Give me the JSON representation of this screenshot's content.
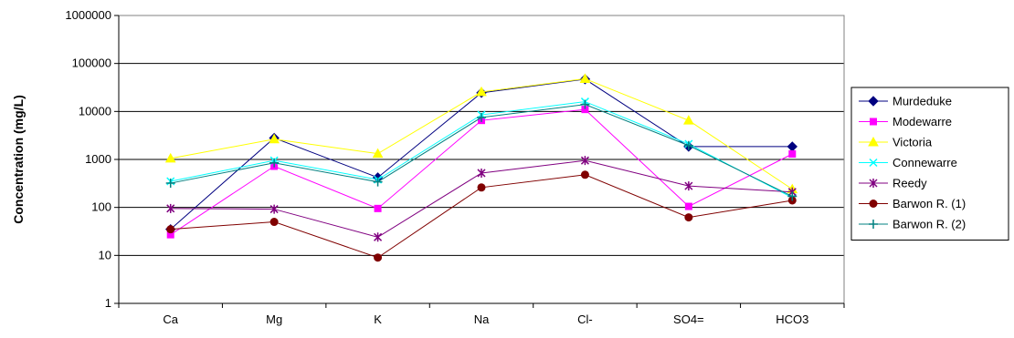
{
  "chart_data": {
    "type": "line",
    "ylabel": "Concentration (mg/L)",
    "xlabel": "",
    "yscale": "log",
    "ylim": [
      1,
      1000000
    ],
    "yticks": [
      "1",
      "10",
      "100",
      "1000",
      "10000",
      "100000",
      "1000000"
    ],
    "grid": "horizontal",
    "legend_position": "right",
    "categories": [
      "Ca",
      "Mg",
      "K",
      "Na",
      "Cl-",
      "SO4=",
      "HCO3"
    ],
    "series": [
      {
        "name": "Murdeduke",
        "color": "#000080",
        "marker": "diamond",
        "values": [
          35,
          2800,
          420,
          24500,
          47000,
          1850,
          1850
        ]
      },
      {
        "name": "Modewarre",
        "color": "#FF00FF",
        "marker": "square",
        "values": [
          27,
          720,
          95,
          6500,
          11000,
          105,
          1300
        ]
      },
      {
        "name": "Victoria",
        "color": "#FFFF00",
        "marker": "triangle",
        "values": [
          1050,
          2650,
          1320,
          25500,
          48000,
          6500,
          240
        ]
      },
      {
        "name": "Connewarre",
        "color": "#00FFFF",
        "marker": "x",
        "values": [
          350,
          950,
          380,
          8500,
          16000,
          2100,
          160
        ]
      },
      {
        "name": "Reedy",
        "color": "#800080",
        "marker": "star",
        "values": [
          95,
          92,
          24,
          520,
          950,
          280,
          210
        ]
      },
      {
        "name": "Barwon R. (1)",
        "color": "#800000",
        "marker": "circle",
        "values": [
          35,
          50,
          9,
          260,
          480,
          62,
          140
        ]
      },
      {
        "name": "Barwon R. (2)",
        "color": "#008080",
        "marker": "plus",
        "values": [
          320,
          850,
          340,
          7500,
          14000,
          1950,
          170
        ]
      }
    ]
  }
}
